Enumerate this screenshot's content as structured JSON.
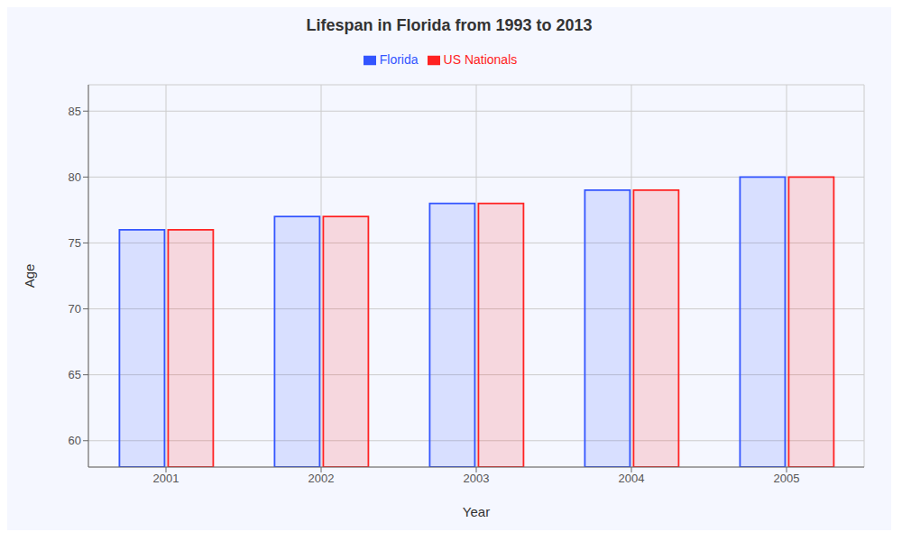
{
  "chart_data": {
    "type": "bar",
    "title": "Lifespan in Florida from 1993 to 2013",
    "x_label": "Year",
    "y_label": "Age",
    "categories": [
      "2001",
      "2002",
      "2003",
      "2004",
      "2005"
    ],
    "series": [
      {
        "name": "Florida",
        "color": "#3355ff",
        "values": [
          76,
          77,
          78,
          79,
          80
        ]
      },
      {
        "name": "US Nationals",
        "color": "#ff2222",
        "values": [
          76,
          77,
          78,
          79,
          80
        ]
      }
    ],
    "ylim": [
      58,
      87
    ],
    "yticks": [
      60,
      65,
      70,
      75,
      80,
      85
    ],
    "grid": true,
    "legend": "top"
  }
}
